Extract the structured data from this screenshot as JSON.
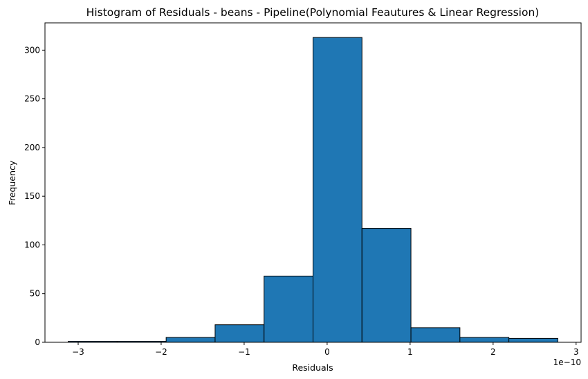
{
  "chart_data": {
    "type": "bar",
    "title": "Histogram of Residuals - beans  - Pipeline(Polynomial Feautures & Linear Regression)",
    "xlabel": "Residuals",
    "ylabel": "Frequency",
    "x_offset_label": "1e−10",
    "bin_edges": [
      -3.12,
      -2.53,
      -1.94,
      -1.35,
      -0.76,
      -0.17,
      0.42,
      1.01,
      1.6,
      2.19,
      2.78
    ],
    "values": [
      1,
      1,
      5,
      18,
      68,
      313,
      117,
      15,
      5,
      4
    ],
    "xlim": [
      -3.4,
      3.06
    ],
    "ylim": [
      0,
      328
    ],
    "x_ticks": [
      -3,
      -2,
      -1,
      0,
      1,
      2,
      3
    ],
    "x_tick_labels": [
      "−3",
      "−2",
      "−1",
      "0",
      "1",
      "2",
      "3"
    ],
    "y_ticks": [
      0,
      50,
      100,
      150,
      200,
      250,
      300
    ],
    "y_tick_labels": [
      "0",
      "50",
      "100",
      "150",
      "200",
      "250",
      "300"
    ],
    "bar_color": "#1f77b4",
    "edge_color": "#000000",
    "grid": false,
    "legend": "none"
  }
}
